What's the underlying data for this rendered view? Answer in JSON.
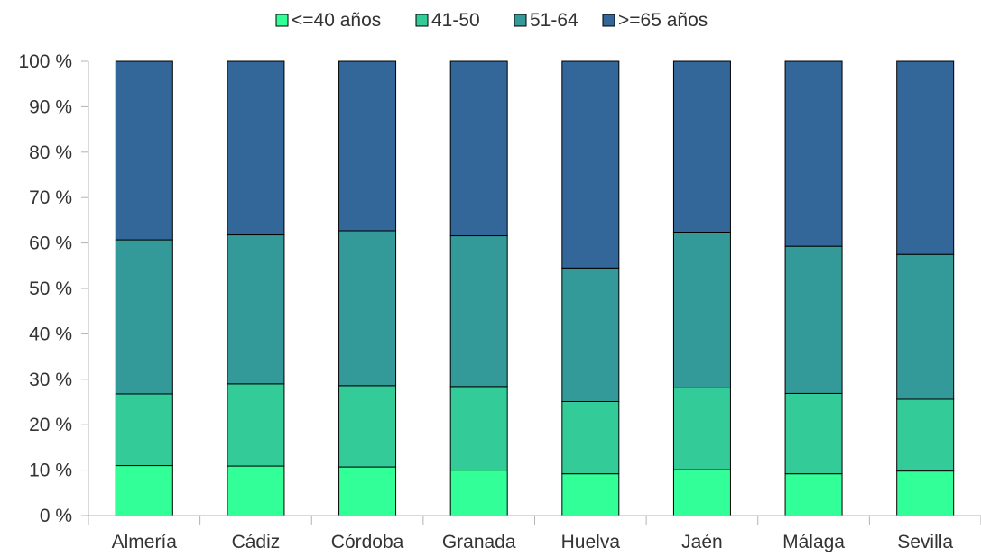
{
  "chart_data": {
    "type": "bar",
    "stacked": true,
    "normalized": true,
    "title": "",
    "xlabel": "",
    "ylabel": "",
    "ylim": [
      0,
      100
    ],
    "yticks": [
      "0 %",
      "10 %",
      "20 %",
      "30 %",
      "40 %",
      "50 %",
      "60 %",
      "70 %",
      "80 %",
      "90 %",
      "100 %"
    ],
    "grid": false,
    "legend_position": "top",
    "categories": [
      "Almería",
      "Cádiz",
      "Córdoba",
      "Granada",
      "Huelva",
      "Jaén",
      "Málaga",
      "Sevilla"
    ],
    "series": [
      {
        "name": "<=40 años",
        "color": "#33ff99",
        "values": [
          11.0,
          10.9,
          10.7,
          10.0,
          9.2,
          10.1,
          9.2,
          9.8
        ]
      },
      {
        "name": "41-50",
        "color": "#33cc99",
        "values": [
          15.8,
          18.1,
          17.9,
          18.4,
          15.9,
          18.0,
          17.7,
          15.8
        ]
      },
      {
        "name": "51-64",
        "color": "#339999",
        "values": [
          33.9,
          32.8,
          34.1,
          33.2,
          29.4,
          34.3,
          32.4,
          31.9
        ]
      },
      {
        "name": ">=65 años",
        "color": "#336699",
        "values": [
          39.3,
          38.2,
          37.3,
          38.4,
          45.5,
          37.6,
          40.7,
          42.5
        ]
      }
    ]
  }
}
